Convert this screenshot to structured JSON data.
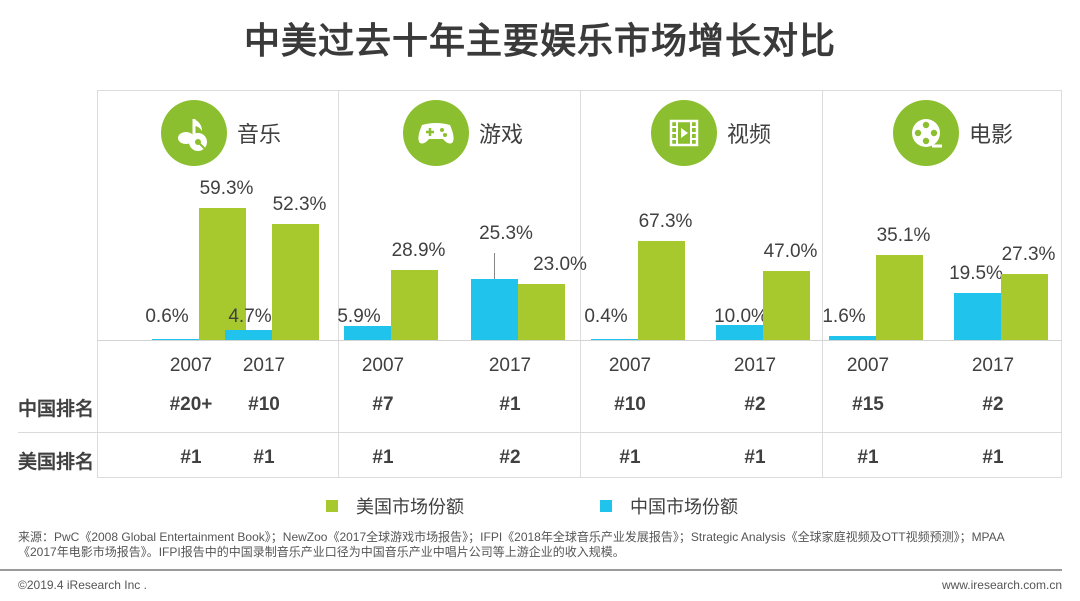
{
  "title": "中美过去十年主要娱乐市场增长对比",
  "colors": {
    "us": "#a8c92e",
    "china": "#1fc3ec",
    "icon_bg": "#8cbf2f"
  },
  "chart_data": {
    "type": "bar",
    "title": "中美过去十年主要娱乐市场增长对比",
    "xlabel": "",
    "ylabel": "",
    "grid": false,
    "legend_position": "bottom",
    "panels": [
      {
        "name": "音乐",
        "icon": "music-note-icon",
        "categories": [
          "2007",
          "2017"
        ],
        "series": [
          {
            "name": "中国市场份额",
            "values": [
              0.6,
              4.7
            ],
            "labels": [
              "0.6%",
              "4.7%"
            ]
          },
          {
            "name": "美国市场份额",
            "values": [
              59.3,
              52.3
            ],
            "labels": [
              "59.3%",
              "52.3%"
            ]
          }
        ],
        "china_rank": [
          "#20+",
          "#10"
        ],
        "us_rank": [
          "#1",
          "#1"
        ]
      },
      {
        "name": "游戏",
        "icon": "gamepad-icon",
        "categories": [
          "2007",
          "2017"
        ],
        "series": [
          {
            "name": "中国市场份额",
            "values": [
              5.9,
              25.3
            ],
            "labels": [
              "5.9%",
              "25.3%"
            ]
          },
          {
            "name": "美国市场份额",
            "values": [
              28.9,
              23.0
            ],
            "labels": [
              "28.9%",
              "23.0%"
            ]
          }
        ],
        "china_rank": [
          "#7",
          "#1"
        ],
        "us_rank": [
          "#1",
          "#2"
        ]
      },
      {
        "name": "视频",
        "icon": "film-strip-play-icon",
        "categories": [
          "2007",
          "2017"
        ],
        "series": [
          {
            "name": "中国市场份额",
            "values": [
              0.4,
              10.0
            ],
            "labels": [
              "0.4%",
              "10.0%"
            ]
          },
          {
            "name": "美国市场份额",
            "values": [
              67.3,
              47.0
            ],
            "labels": [
              "67.3%",
              "47.0%"
            ]
          }
        ],
        "china_rank": [
          "#10",
          "#2"
        ],
        "us_rank": [
          "#1",
          "#1"
        ]
      },
      {
        "name": "电影",
        "icon": "film-reel-icon",
        "categories": [
          "2007",
          "2017"
        ],
        "series": [
          {
            "name": "中国市场份额",
            "values": [
              1.6,
              19.5
            ],
            "labels": [
              "1.6%",
              "19.5%"
            ]
          },
          {
            "name": "美国市场份额",
            "values": [
              35.1,
              27.3
            ],
            "labels": [
              "35.1%",
              "27.3%"
            ]
          }
        ],
        "china_rank": [
          "#15",
          "#2"
        ],
        "us_rank": [
          "#1",
          "#1"
        ]
      }
    ],
    "legend": [
      "美国市场份额",
      "中国市场份额"
    ]
  },
  "row_labels": {
    "china": "中国排名",
    "us": "美国排名"
  },
  "legend": {
    "us": "美国市场份额",
    "china": "中国市场份额"
  },
  "source": "来源：PwC《2008 Global Entertainment Book》；NewZoo《2017全球游戏市场报告》；IFPI《2018年全球音乐产业发展报告》；Strategic Analysis《全球家庭视频及OTT视频预测》；MPAA《2017年电影市场报告》。IFPI报告中的中国录制音乐产业口径为中国音乐产业中唱片公司等上游企业的收入规模。",
  "footer": {
    "copyright": "©2019.4 iResearch Inc .",
    "site": "www.iresearch.com.cn"
  }
}
